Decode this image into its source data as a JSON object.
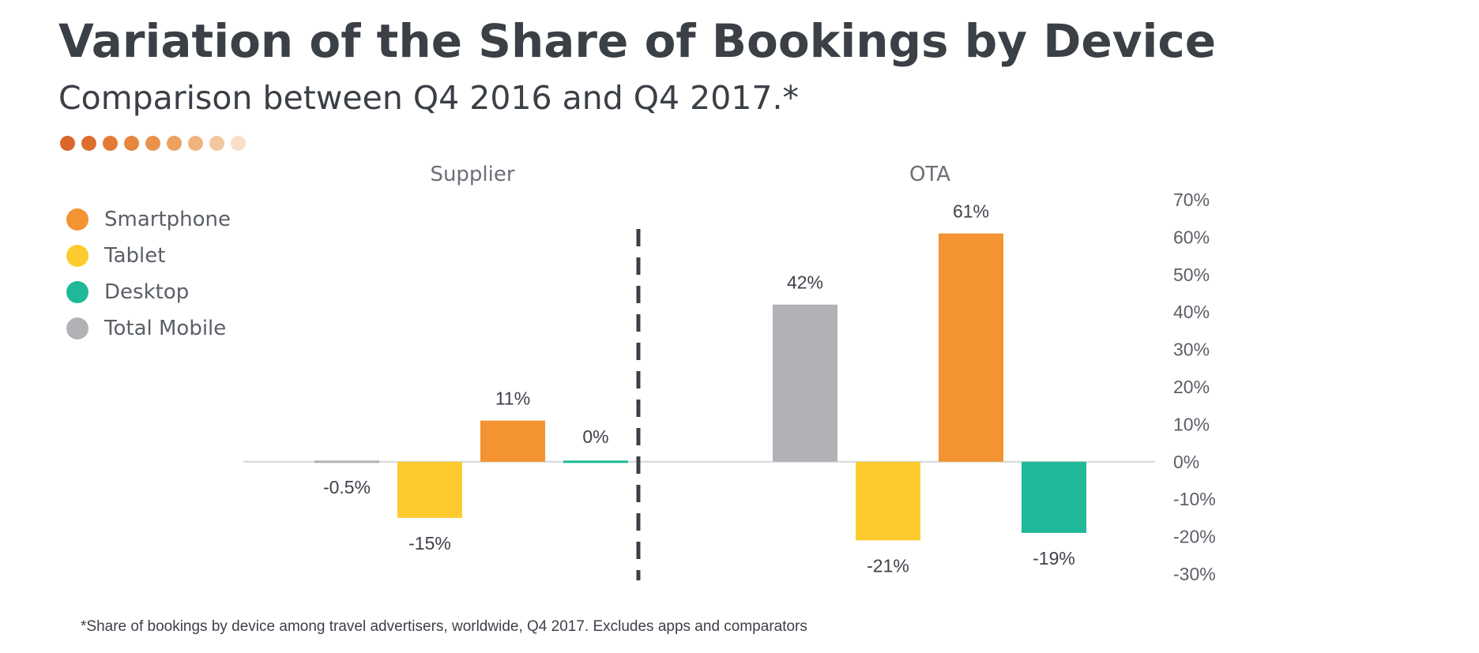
{
  "title": "Variation of the Share of Bookings by Device",
  "subtitle": "Comparison between Q4 2016 and Q4 2017.*",
  "footnote": "*Share of bookings by device among travel advertisers, worldwide, Q4 2017. Excludes apps and comparators",
  "dot_colors": [
    "#d9662a",
    "#de6e2e",
    "#e27a35",
    "#e5853e",
    "#e9924c",
    "#eda060",
    "#f1b27d",
    "#f5c7a1",
    "#f9dfca"
  ],
  "legend": [
    {
      "label": "Smartphone",
      "color": "#f39331"
    },
    {
      "label": "Tablet",
      "color": "#fdcb2e"
    },
    {
      "label": "Desktop",
      "color": "#1fb899"
    },
    {
      "label": "Total Mobile",
      "color": "#b1b2b6"
    }
  ],
  "chart_data": {
    "type": "bar",
    "groups": [
      "Supplier",
      "OTA"
    ],
    "bar_order": [
      "Total Mobile",
      "Tablet",
      "Smartphone",
      "Desktop"
    ],
    "series": [
      {
        "name": "Total Mobile",
        "color": "#b1b2b6",
        "values": [
          -0.5,
          42
        ],
        "labels": [
          "-0.5%",
          "42%"
        ]
      },
      {
        "name": "Tablet",
        "color": "#fdcb2e",
        "values": [
          -15,
          -21
        ],
        "labels": [
          "-15%",
          "-21%"
        ]
      },
      {
        "name": "Smartphone",
        "color": "#f39331",
        "values": [
          11,
          61
        ],
        "labels": [
          "11%",
          "61%"
        ]
      },
      {
        "name": "Desktop",
        "color": "#1fb899",
        "values": [
          0,
          -19
        ],
        "labels": [
          "0%",
          "-19%"
        ]
      }
    ],
    "y_ticks": [
      "70%",
      "60%",
      "50%",
      "40%",
      "30%",
      "20%",
      "10%",
      "0%",
      "-10%",
      "-20%",
      "-30%"
    ],
    "ylim": [
      -30,
      70
    ],
    "y_axis_side": "right",
    "group_divider": "dashed"
  }
}
